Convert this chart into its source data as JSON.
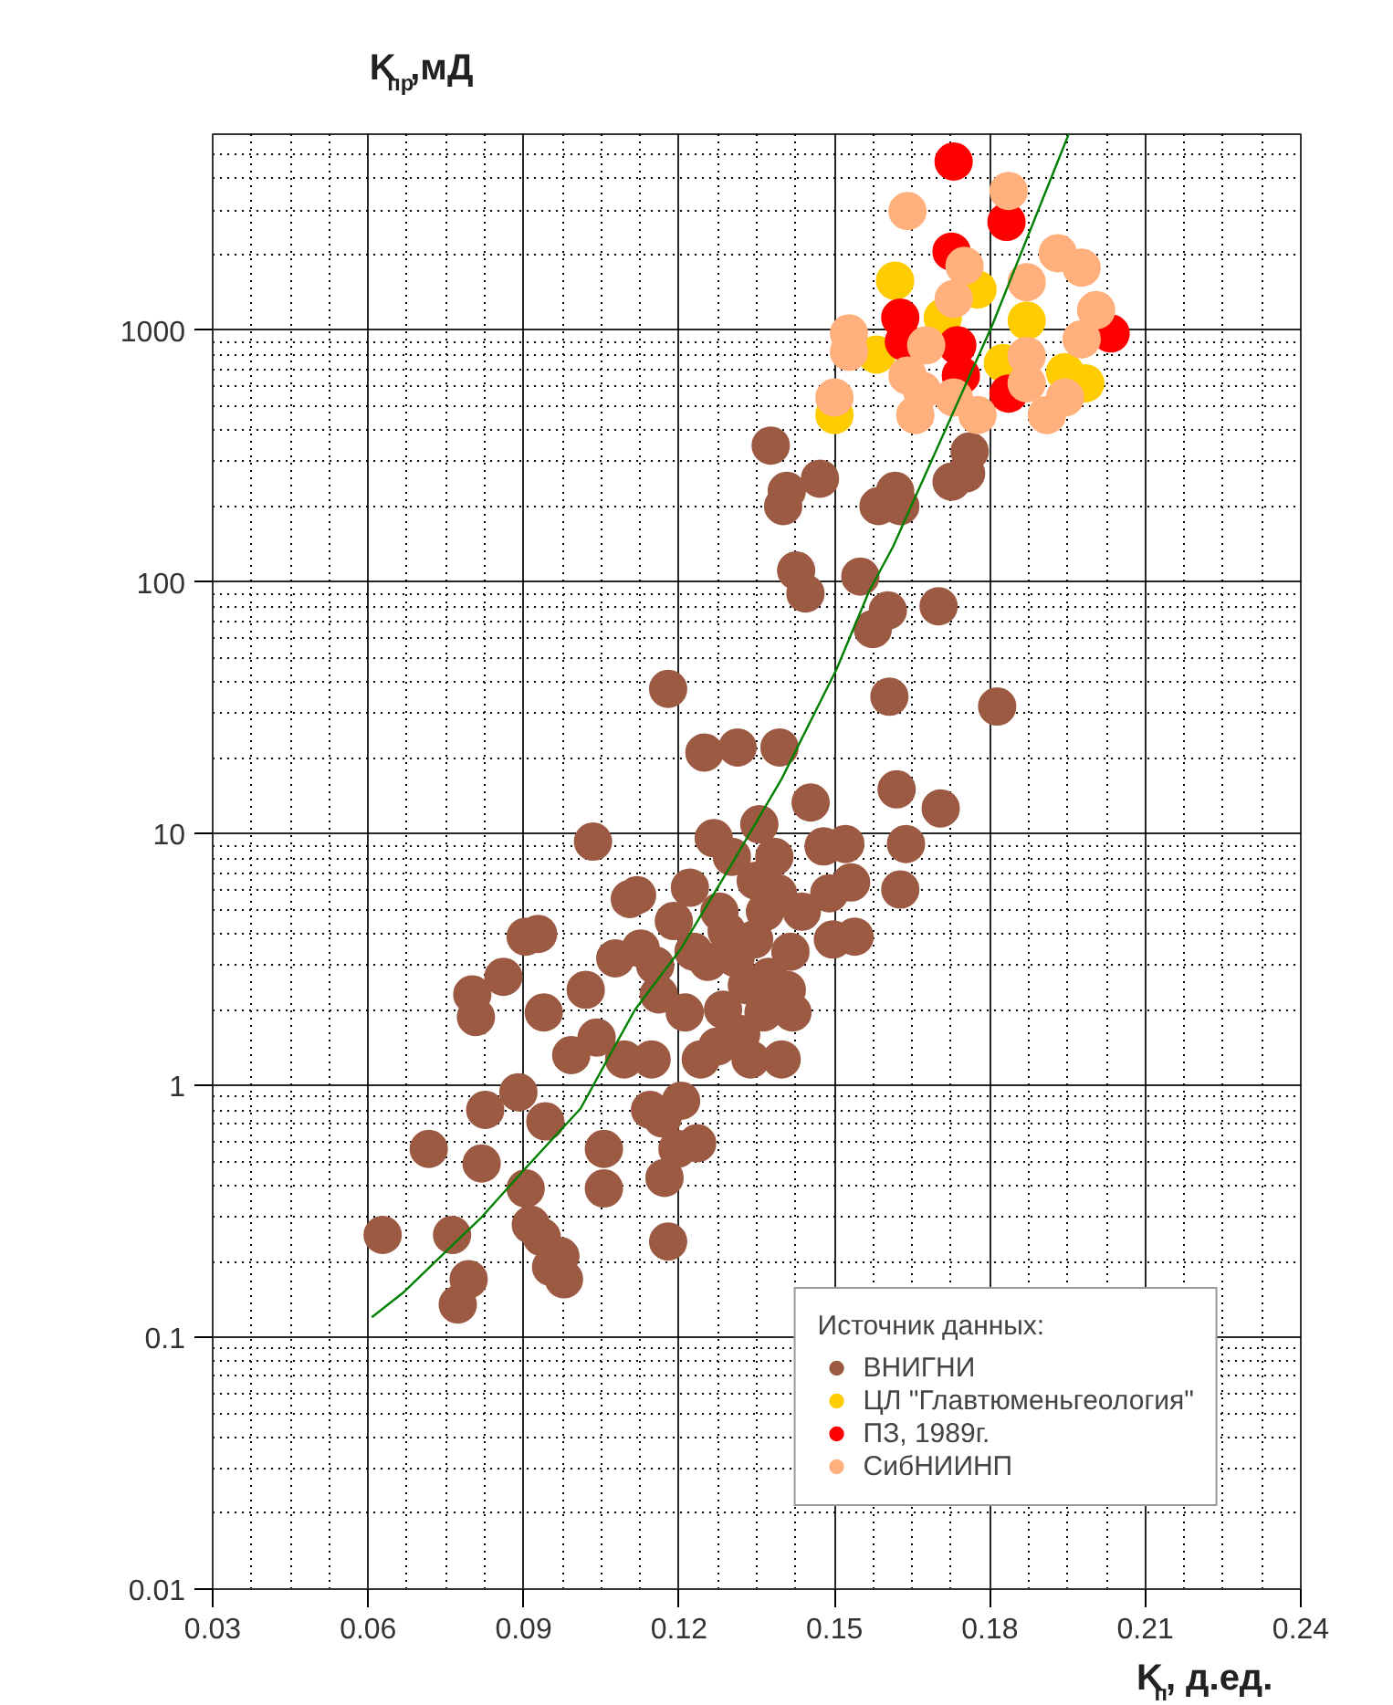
{
  "chart_data": {
    "type": "scatter",
    "xlabel": "K$_{п}$, д.ед.",
    "ylabel": "K$_{пр}$,мД",
    "legend_title": "Источник данных:",
    "xlim": [
      0.03,
      0.24
    ],
    "xticks": [
      0.03,
      0.06,
      0.09,
      0.12,
      0.15,
      0.18,
      0.21,
      0.24
    ],
    "ylim": [
      0.01,
      6000
    ],
    "yticks": [
      0.01,
      0.1,
      1,
      10,
      100,
      1000
    ],
    "log": true,
    "grid": true,
    "legend": "bottom right",
    "marker": "circle",
    "series": [
      {
        "name": "ВНИГНИ",
        "color": "#9c5a43",
        "x": [
          0.0628,
          0.0717,
          0.0762,
          0.0773,
          0.0794,
          0.0801,
          0.0808,
          0.0819,
          0.0826,
          0.0861,
          0.089,
          0.0904,
          0.0928,
          0.0904,
          0.0914,
          0.0939,
          0.0942,
          0.0935,
          0.0953,
          0.0971,
          0.0978,
          0.0992,
          0.102,
          0.1034,
          0.1041,
          0.1055,
          0.1055,
          0.1077,
          0.1094,
          0.1105,
          0.1119,
          0.1126,
          0.1144,
          0.1147,
          0.1154,
          0.1161,
          0.1168,
          0.1172,
          0.1179,
          0.1179,
          0.119,
          0.1197,
          0.1204,
          0.1211,
          0.1221,
          0.1228,
          0.1235,
          0.1242,
          0.1249,
          0.1256,
          0.1267,
          0.1274,
          0.1278,
          0.1285,
          0.1292,
          0.1302,
          0.1309,
          0.1313,
          0.132,
          0.1331,
          0.1338,
          0.1345,
          0.1348,
          0.1355,
          0.1363,
          0.1366,
          0.1373,
          0.1377,
          0.1384,
          0.1391,
          0.1394,
          0.1398,
          0.1401,
          0.1408,
          0.1408,
          0.1415,
          0.1419,
          0.1426,
          0.1437,
          0.1444,
          0.1454,
          0.1472,
          0.1479,
          0.149,
          0.1497,
          0.1521,
          0.1532,
          0.1539,
          0.155,
          0.1574,
          0.1585,
          0.1603,
          0.1606,
          0.1617,
          0.162,
          0.1627,
          0.1627,
          0.1638,
          0.1701,
          0.1705,
          0.1726,
          0.1754,
          0.1761,
          0.1814
        ],
        "values": [
          0.255,
          0.56,
          0.255,
          0.135,
          0.17,
          2.3,
          1.87,
          0.49,
          0.8,
          2.7,
          0.94,
          3.9,
          4.0,
          0.39,
          0.28,
          1.95,
          0.72,
          0.25,
          0.19,
          0.21,
          0.17,
          1.32,
          2.4,
          9.3,
          1.55,
          0.56,
          0.39,
          3.2,
          1.27,
          5.5,
          5.7,
          3.5,
          0.8,
          1.27,
          3.0,
          2.3,
          0.74,
          0.43,
          0.24,
          37.6,
          4.5,
          0.56,
          0.87,
          1.95,
          6.1,
          3.4,
          0.59,
          1.27,
          21,
          3.1,
          9.6,
          1.43,
          4.9,
          2.0,
          4.1,
          8.1,
          3.2,
          22,
          1.6,
          2.5,
          1.27,
          3.8,
          6.5,
          10.9,
          1.95,
          4.9,
          2.7,
          348,
          8.1,
          5.8,
          22,
          1.27,
          200,
          230,
          2.4,
          3.4,
          1.95,
          111,
          4.9,
          90,
          13.3,
          257,
          8.9,
          5.8,
          3.8,
          9.1,
          6.4,
          3.9,
          105,
          65,
          200,
          77,
          35,
          230,
          15,
          200,
          6.0,
          9.1,
          80,
          12.6,
          250,
          270,
          330,
          32
        ]
      },
      {
        "name": "ЦЛ \"Главтюменьгеология\"",
        "color": "#ffcc00",
        "x": [
          0.1617,
          0.1709,
          0.1776,
          0.1871,
          0.1581,
          0.15,
          0.1825,
          0.1945,
          0.1984
        ],
        "values": [
          1570,
          1120,
          1450,
          1090,
          800,
          460,
          740,
          680,
          615
        ]
      },
      {
        "name": "ПЗ, 1989г.",
        "color": "#ff0000",
        "x": [
          0.173,
          0.1832,
          0.1726,
          0.1627,
          0.1737,
          0.2033,
          0.1836,
          0.1634,
          0.1744
        ],
        "values": [
          4670,
          2690,
          2050,
          1120,
          870,
          970,
          560,
          900,
          660
        ]
      },
      {
        "name": "СибНИИНП",
        "color": "#ffb07c",
        "x": [
          0.1836,
          0.1641,
          0.1931,
          0.1977,
          0.1751,
          0.1871,
          0.173,
          0.2005,
          0.1977,
          0.1528,
          0.1528,
          0.1677,
          0.1641,
          0.1871,
          0.15,
          0.1669,
          0.173,
          0.1776,
          0.191,
          0.1945,
          0.1656,
          0.1871
        ],
        "values": [
          3570,
          2970,
          2020,
          1770,
          1800,
          1550,
          1330,
          1200,
          920,
          970,
          820,
          870,
          660,
          790,
          540,
          575,
          540,
          460,
          460,
          540,
          460,
          615
        ]
      },
      {
        "type": "line",
        "color": "#008000",
        "marker": "none",
        "x": [
          0.0607,
          0.0667,
          0.0819,
          0.0904,
          0.101,
          0.1062,
          0.1115,
          0.1204,
          0.1302,
          0.1398,
          0.1504,
          0.1567,
          0.1613,
          0.1804,
          0.1952
        ],
        "values": [
          0.12,
          0.15,
          0.3,
          0.47,
          0.81,
          1.27,
          2.0,
          3.5,
          7.6,
          16.5,
          45,
          92,
          138,
          1040,
          6000
        ]
      }
    ]
  }
}
